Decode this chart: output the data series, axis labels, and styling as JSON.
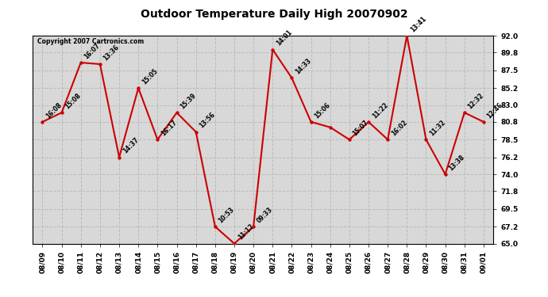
{
  "title": "Outdoor Temperature Daily High 20070902",
  "copyright": "Copyright 2007 Cartronics.com",
  "background_color": "#ffffff",
  "plot_background": "#d8d8d8",
  "grid_color": "#bbbbbb",
  "line_color": "#cc0000",
  "marker_color": "#cc0000",
  "text_color": "#000000",
  "ylim": [
    65.0,
    92.0
  ],
  "yticks": [
    65.0,
    67.2,
    69.5,
    71.8,
    74.0,
    76.2,
    78.5,
    80.8,
    83.0,
    85.2,
    87.5,
    89.8,
    92.0
  ],
  "dates": [
    "08/09",
    "08/10",
    "08/11",
    "08/12",
    "08/13",
    "08/14",
    "08/15",
    "08/16",
    "08/17",
    "08/18",
    "08/19",
    "08/20",
    "08/21",
    "08/22",
    "08/23",
    "08/24",
    "08/25",
    "08/26",
    "08/27",
    "08/28",
    "08/29",
    "08/30",
    "08/31",
    "09/01"
  ],
  "temps": [
    80.8,
    82.0,
    88.5,
    88.3,
    76.2,
    85.2,
    78.5,
    82.0,
    79.5,
    67.2,
    65.0,
    67.2,
    90.2,
    86.5,
    80.8,
    80.1,
    78.5,
    80.8,
    78.5,
    92.0,
    78.5,
    74.0,
    82.0,
    80.8
  ],
  "times": [
    "16:08",
    "15:08",
    "16:07",
    "13:36",
    "14:37",
    "15:05",
    "16:17",
    "15:39",
    "13:56",
    "10:53",
    "11:12",
    "09:33",
    "14:01",
    "14:33",
    "15:06",
    "",
    "15:07",
    "11:22",
    "16:02",
    "13:41",
    "11:32",
    "13:38",
    "12:32",
    "12:46"
  ],
  "figsize": [
    6.9,
    3.75
  ],
  "dpi": 100
}
